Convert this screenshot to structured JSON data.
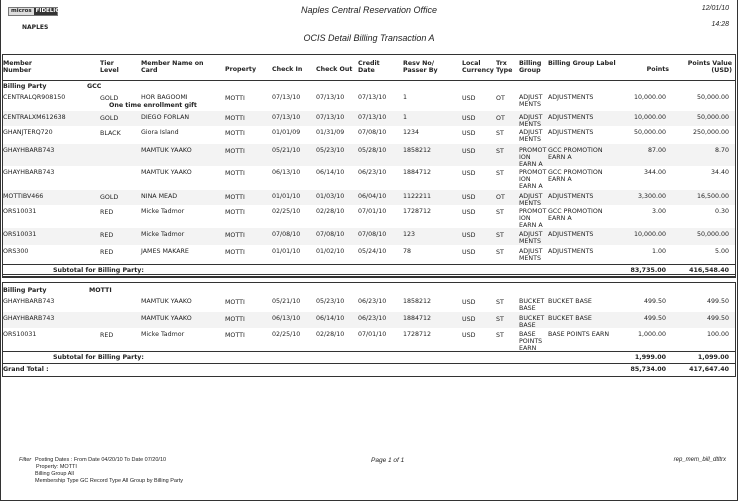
{
  "header": {
    "logo_left": "micros",
    "logo_right": "FIDELIO",
    "property_code": "NAPLES",
    "office": "Naples Central Reservation Office",
    "date": "12/01/10",
    "time": "14:28",
    "report_title": "OCIS Detail Billing Transaction A"
  },
  "columns": [
    "Member Number",
    "Tier Level",
    "Member Name on Card",
    "Property",
    "Check In",
    "Check Out",
    "Credit Date",
    "Resv No/ Passer By",
    "Local Currency",
    "Trx Type",
    "Billing Group",
    "Billing Group Label",
    "Points",
    "Points Value (USD)"
  ],
  "groups": [
    {
      "label": "Billing Party",
      "value": "GCC",
      "rows": [
        [
          "CENTRALQR908150",
          "GOLD",
          "HOR BAGOOMI",
          "MOTTI",
          "07/13/10",
          "07/13/10",
          "07/13/10",
          "1",
          "USD",
          "OT",
          "ADJUST MENTS",
          "ADJUSTMENTS",
          "10,000.00",
          "50,000.00"
        ],
        [
          "CENTRALXM612638",
          "GOLD",
          "DIEGO FORLAN",
          "MOTTI",
          "07/13/10",
          "07/13/10",
          "07/13/10",
          "1",
          "USD",
          "OT",
          "ADJUST MENTS",
          "ADJUSTMENTS",
          "10,000.00",
          "50,000.00"
        ],
        [
          "GHANJTERQ720",
          "BLACK",
          "Giora Island",
          "MOTTI",
          "01/01/09",
          "01/31/09",
          "07/08/10",
          "1234",
          "USD",
          "ST",
          "ADJUST MENTS",
          "ADJUSTMENTS",
          "50,000.00",
          "250,000.00"
        ],
        [
          "GHAYHBARB743",
          "",
          "MAMTUK YAAKO",
          "MOTTI",
          "05/21/10",
          "05/23/10",
          "05/28/10",
          "1858212",
          "USD",
          "ST",
          "PROMOT ION EARN A",
          "GCC PROMOTION EARN A",
          "87.00",
          "8.70"
        ],
        [
          "GHAYHBARB743",
          "",
          "MAMTUK YAAKO",
          "MOTTI",
          "06/13/10",
          "06/14/10",
          "06/23/10",
          "1884712",
          "USD",
          "ST",
          "PROMOT ION EARN A",
          "GCC PROMOTION EARN A",
          "344.00",
          "34.40"
        ],
        [
          "MOTTIBV466",
          "GOLD",
          "NINA MEAD",
          "MOTTI",
          "01/01/10",
          "01/03/10",
          "06/04/10",
          "1122211",
          "USD",
          "OT",
          "ADJUST MENTS",
          "ADJUSTMENTS",
          "3,300.00",
          "16,500.00"
        ],
        [
          "ORS10031",
          "RED",
          "Micke Tadmor",
          "MOTTI",
          "02/25/10",
          "02/28/10",
          "07/01/10",
          "1728712",
          "USD",
          "ST",
          "PROMOT ION EARN A",
          "GCC PROMOTION EARN A",
          "3.00",
          "0.30"
        ],
        [
          "ORS10031",
          "RED",
          "Micke Tadmor",
          "MOTTI",
          "07/08/10",
          "07/08/10",
          "07/08/10",
          "123",
          "USD",
          "ST",
          "ADJUST MENTS",
          "ADJUSTMENTS",
          "10,000.00",
          "50,000.00"
        ],
        [
          "ORS300",
          "RED",
          "JAMES MAKARE",
          "MOTTI",
          "01/01/10",
          "01/02/10",
          "05/24/10",
          "78",
          "USD",
          "ST",
          "ADJUST MENTS",
          "ADJUSTMENTS",
          "1.00",
          "5.00"
        ]
      ],
      "note": "One time enrollment gift",
      "subtotal_label": "Subtotal for Billing Party:",
      "subtotal_points": "83,735.00",
      "subtotal_value": "416,548.40"
    },
    {
      "label": "Billing Party",
      "value": "MOTTI",
      "rows": [
        [
          "GHAYHBARB743",
          "",
          "MAMTUK YAAKO",
          "MOTTI",
          "05/21/10",
          "05/23/10",
          "06/23/10",
          "1858212",
          "USD",
          "ST",
          "BUCKET BASE",
          "BUCKET BASE",
          "499.50",
          "499.50"
        ],
        [
          "GHAYHBARB743",
          "",
          "MAMTUK YAAKO",
          "MOTTI",
          "06/13/10",
          "06/14/10",
          "06/23/10",
          "1884712",
          "USD",
          "ST",
          "BUCKET BASE",
          "BUCKET BASE",
          "499.50",
          "499.50"
        ],
        [
          "ORS10031",
          "RED",
          "Micke Tadmor",
          "MOTTI",
          "02/25/10",
          "02/28/10",
          "07/01/10",
          "1728712",
          "USD",
          "ST",
          "BASE POINTS EARN",
          "BASE POINTS EARN",
          "1,000.00",
          "100.00"
        ]
      ],
      "subtotal_label": "Subtotal for Billing Party:",
      "subtotal_points": "1,999.00",
      "subtotal_value": "1,099.00"
    }
  ],
  "grand_total": {
    "label": "Grand Total :",
    "points": "85,734.00",
    "value": "417,647.40"
  },
  "footer": {
    "filter_label": "Filter",
    "line1": "Posting Dates :   From Date 04/20/10   To Date 07/20/10",
    "line2": "Property:   MOTTI",
    "line3": "Billing Group All",
    "line4": "Membership Type GC   Record Type All   Group by Billing Party",
    "page": "Page 1 of 1",
    "report_code": "rep_mem_bill_dtltrx"
  }
}
